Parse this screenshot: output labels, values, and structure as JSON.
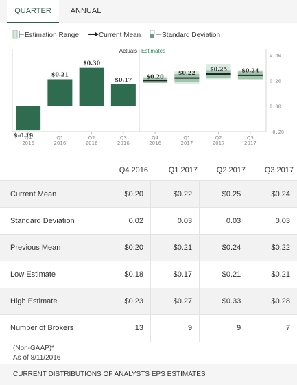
{
  "tabs": {
    "quarter": "QUARTER",
    "annual": "ANNUAL"
  },
  "legend": {
    "estimation_range": "Estimation Range",
    "current_mean": "Current Mean",
    "standard_deviation": "Standard Deviation"
  },
  "colors": {
    "actual": "#2e6b4f",
    "estimate": "#9fc5ad",
    "mean": "#222222",
    "tab_accent": "#2c5f46"
  },
  "chart_data": {
    "type": "bar",
    "section_labels": {
      "actuals": "Actuals",
      "estimates": "Estimates"
    },
    "ylim": [
      -0.2,
      0.4
    ],
    "y_ticks": [
      "0.40",
      "0.20",
      "0.00",
      "-0.20"
    ],
    "y_tick_values": [
      0.4,
      0.2,
      0.0,
      -0.2
    ],
    "categories": [
      [
        "Q4",
        "2015"
      ],
      [
        "Q1",
        "2016"
      ],
      [
        "Q2",
        "2016"
      ],
      [
        "Q3",
        "2016"
      ],
      [
        "Q4",
        "2016"
      ],
      [
        "Q1",
        "2017"
      ],
      [
        "Q2",
        "2017"
      ],
      [
        "Q3",
        "2017"
      ]
    ],
    "actuals": [
      {
        "value": -0.19,
        "label": "$-0.19"
      },
      {
        "value": 0.21,
        "label": "$0.21"
      },
      {
        "value": 0.3,
        "label": "$0.30"
      },
      {
        "value": 0.17,
        "label": "$0.17"
      }
    ],
    "estimates": [
      {
        "mean": 0.2,
        "std": 0.02,
        "low": 0.18,
        "high": 0.23,
        "label": "$0.20"
      },
      {
        "mean": 0.22,
        "std": 0.03,
        "low": 0.17,
        "high": 0.27,
        "label": "$0.22"
      },
      {
        "mean": 0.25,
        "std": 0.03,
        "low": 0.21,
        "high": 0.33,
        "label": "$0.25"
      },
      {
        "mean": 0.24,
        "std": 0.03,
        "low": 0.21,
        "high": 0.28,
        "label": "$0.24"
      }
    ]
  },
  "table": {
    "columns": [
      "Q4 2016",
      "Q1 2017",
      "Q2 2017",
      "Q3 2017"
    ],
    "rows": [
      {
        "label": "Current Mean",
        "values": [
          "$0.20",
          "$0.22",
          "$0.25",
          "$0.24"
        ]
      },
      {
        "label": "Standard Deviation",
        "values": [
          "0.02",
          "0.03",
          "0.03",
          "0.03"
        ]
      },
      {
        "label": "Previous Mean",
        "values": [
          "$0.20",
          "$0.21",
          "$0.24",
          "$0.22"
        ]
      },
      {
        "label": "Low Estimate",
        "values": [
          "$0.18",
          "$0.17",
          "$0.21",
          "$0.21"
        ]
      },
      {
        "label": "High Estimate",
        "values": [
          "$0.23",
          "$0.27",
          "$0.33",
          "$0.28"
        ]
      },
      {
        "label": "Number of Brokers",
        "values": [
          "13",
          "9",
          "9",
          "7"
        ]
      }
    ]
  },
  "footnote": {
    "line1": "(Non-GAAP)*",
    "line2": "As of 8/11/2016"
  },
  "footer": {
    "title": "CURRENT DISTRIBUTIONS OF ANALYSTS EPS ESTIMATES"
  }
}
